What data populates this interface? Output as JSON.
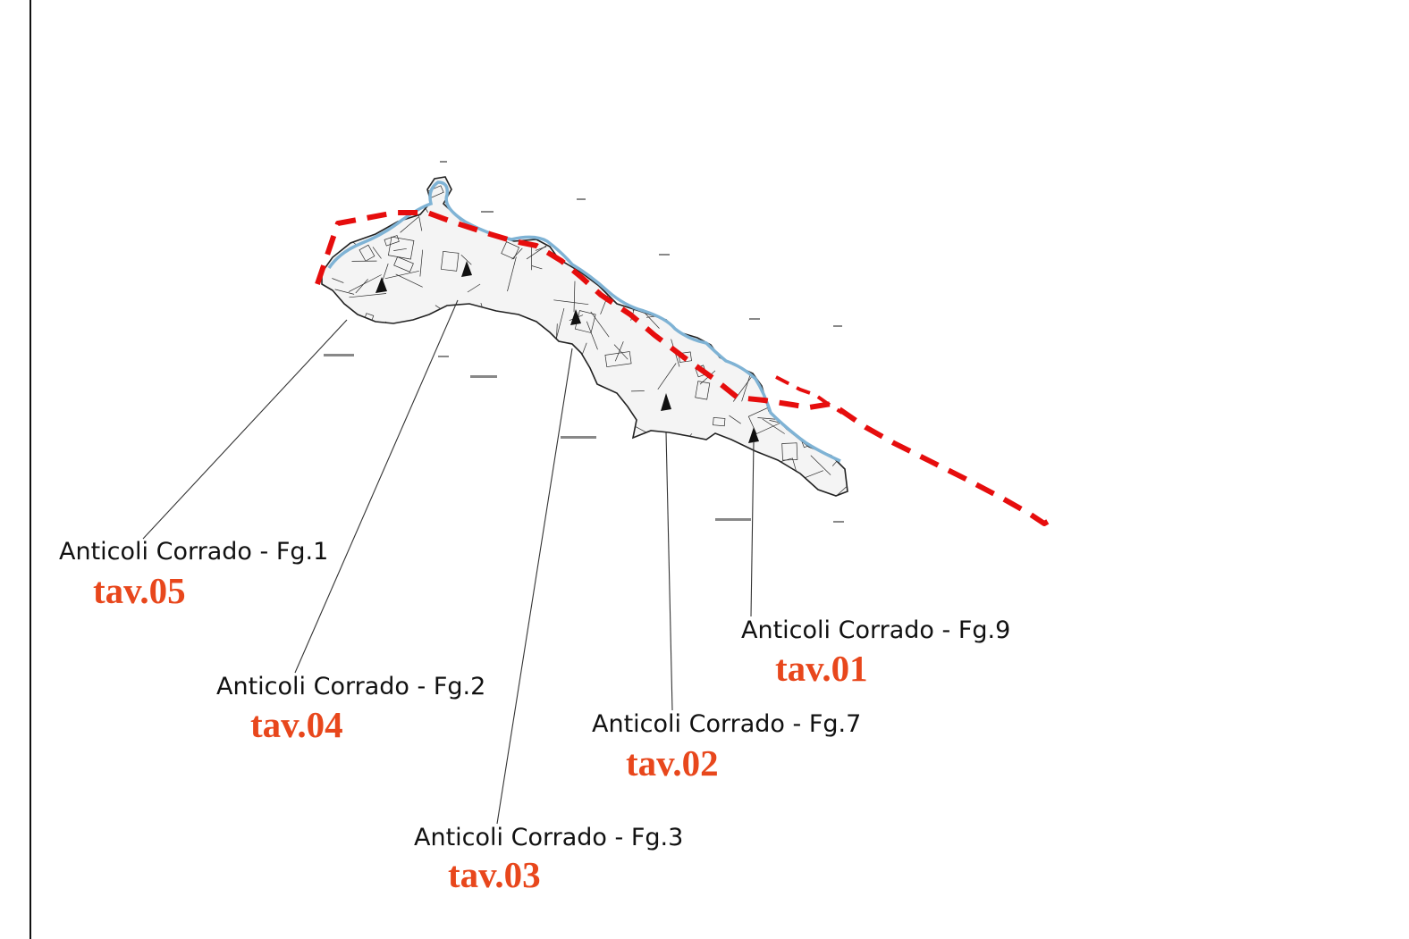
{
  "map": {
    "colors": {
      "boundary": "#e60d0d",
      "label_code": "#e8471c",
      "river": "#7fb3d5",
      "parcels": "#2a2a2a",
      "leader_line": "#333333"
    },
    "callouts": [
      {
        "name": "Anticoli Corrado - Fg.1",
        "code": "tav.05"
      },
      {
        "name": "Anticoli Corrado - Fg.2",
        "code": "tav.04"
      },
      {
        "name": "Anticoli Corrado - Fg.3",
        "code": "tav.03"
      },
      {
        "name": "Anticoli Corrado - Fg.7",
        "code": "tav.02"
      },
      {
        "name": "Anticoli Corrado - Fg.9",
        "code": "tav.01"
      }
    ]
  }
}
